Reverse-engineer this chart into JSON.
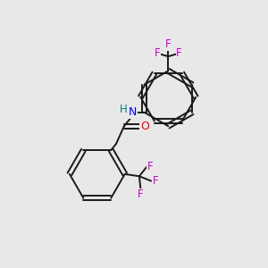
{
  "background_color": "#e8e8e8",
  "bond_color": "#1a1a1a",
  "N_color": "#0000ee",
  "O_color": "#ee0000",
  "F_color": "#cc00cc",
  "H_color": "#008080",
  "figsize": [
    3.0,
    3.0
  ],
  "dpi": 100,
  "lw": 1.4,
  "xlim": [
    0,
    10
  ],
  "ylim": [
    0,
    10
  ]
}
